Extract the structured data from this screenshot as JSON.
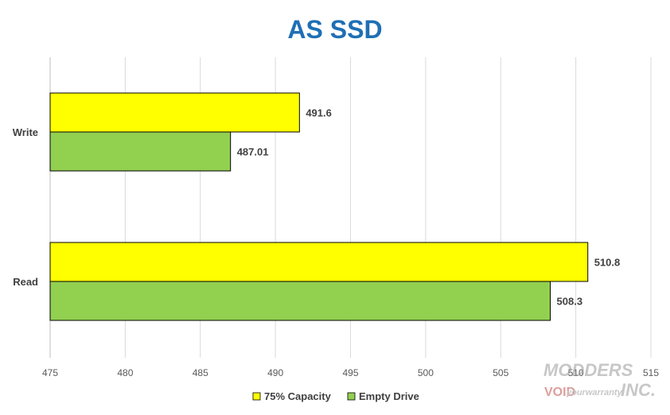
{
  "chart_data": {
    "type": "bar",
    "orientation": "horizontal",
    "title": "AS SSD",
    "categories": [
      "Write",
      "Read"
    ],
    "series": [
      {
        "name": "75% Capacity",
        "values": [
          491.6,
          510.8
        ],
        "color": "#FFFF00"
      },
      {
        "name": "Empty Drive",
        "values": [
          487.01,
          508.3
        ],
        "color": "#92D050"
      }
    ],
    "data_labels": [
      [
        "491.6",
        "510.8"
      ],
      [
        "487.01",
        "508.3"
      ]
    ],
    "xlim": [
      475,
      515
    ],
    "xticks": [
      "475",
      "480",
      "485",
      "490",
      "495",
      "500",
      "505",
      "510",
      "515"
    ],
    "grid": true,
    "legend": "bottom-center",
    "title_color": "#1F6FB5"
  },
  "watermark": {
    "line1": "MODDERS",
    "line2": "VOID",
    "line3": "yourwarranty",
    "line4": "INC."
  }
}
